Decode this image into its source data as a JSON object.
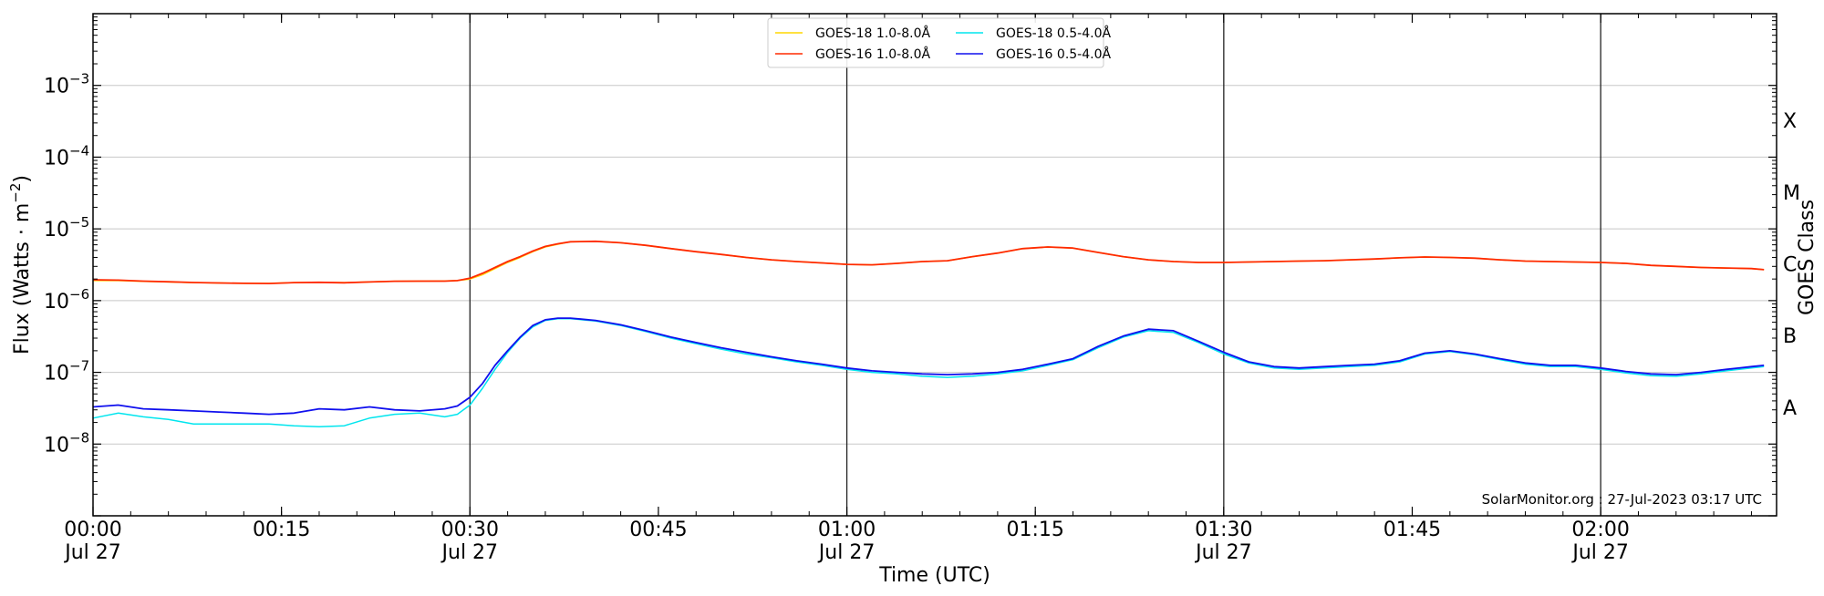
{
  "chart_data": {
    "type": "line",
    "title": "",
    "xlabel": "Time (UTC)",
    "ylabel": "Flux (Watts · m",
    "ylabel_sup": "−2",
    "ylabel_end": ")",
    "y2label": "GOES Class",
    "yscale": "log",
    "xlim": [
      0,
      134
    ],
    "ylim": [
      1e-09,
      0.01
    ],
    "x_unit": "minutes after 2023-07-27 00:00 UTC",
    "grid": "horizontal at decades",
    "legend_position": "top-center",
    "x_ticks": [
      {
        "value": 0,
        "line1": "00:00",
        "line2": "Jul 27"
      },
      {
        "value": 15,
        "line1": "00:15",
        "line2": ""
      },
      {
        "value": 30,
        "line1": "00:30",
        "line2": "Jul 27"
      },
      {
        "value": 45,
        "line1": "00:45",
        "line2": ""
      },
      {
        "value": 60,
        "line1": "01:00",
        "line2": "Jul 27"
      },
      {
        "value": 75,
        "line1": "01:15",
        "line2": ""
      },
      {
        "value": 90,
        "line1": "01:30",
        "line2": "Jul 27"
      },
      {
        "value": 105,
        "line1": "01:45",
        "line2": ""
      },
      {
        "value": 120,
        "line1": "02:00",
        "line2": "Jul 27"
      }
    ],
    "vertical_lines": [
      30,
      60,
      90,
      120
    ],
    "y_ticks": [
      {
        "exp": -3,
        "label": "10",
        "sup": "−3"
      },
      {
        "exp": -4,
        "label": "10",
        "sup": "−4"
      },
      {
        "exp": -5,
        "label": "10",
        "sup": "−5"
      },
      {
        "exp": -6,
        "label": "10",
        "sup": "−6"
      },
      {
        "exp": -7,
        "label": "10",
        "sup": "−7"
      },
      {
        "exp": -8,
        "label": "10",
        "sup": "−8"
      }
    ],
    "goes_classes": [
      {
        "label": "X",
        "exp": -3.5
      },
      {
        "label": "M",
        "exp": -4.5
      },
      {
        "label": "C",
        "exp": -5.5
      },
      {
        "label": "B",
        "exp": -6.5
      },
      {
        "label": "A",
        "exp": -7.5
      }
    ],
    "x": [
      0,
      2,
      4,
      6,
      8,
      10,
      12,
      14,
      16,
      18,
      20,
      22,
      24,
      26,
      28,
      29,
      30,
      31,
      32,
      33,
      34,
      35,
      36,
      37,
      38,
      40,
      42,
      44,
      46,
      48,
      50,
      52,
      54,
      56,
      58,
      60,
      62,
      64,
      66,
      68,
      70,
      72,
      74,
      76,
      78,
      80,
      82,
      84,
      86,
      88,
      90,
      92,
      94,
      96,
      98,
      100,
      102,
      104,
      106,
      108,
      110,
      112,
      114,
      116,
      118,
      120,
      122,
      124,
      126,
      128,
      130,
      132,
      133
    ],
    "series": [
      {
        "name": "GOES-18 1.0-8.0Å",
        "color": "#ffd700",
        "values": [
          1.9e-06,
          1.9e-06,
          1.85e-06,
          1.82e-06,
          1.78e-06,
          1.76e-06,
          1.74e-06,
          1.74e-06,
          1.78e-06,
          1.8e-06,
          1.78e-06,
          1.82e-06,
          1.86e-06,
          1.87e-06,
          1.88e-06,
          1.9e-06,
          2e-06,
          2.3e-06,
          2.8e-06,
          3.4e-06,
          4e-06,
          4.8e-06,
          5.6e-06,
          6.1e-06,
          6.6e-06,
          6.7e-06,
          6.4e-06,
          5.9e-06,
          5.3e-06,
          4.8e-06,
          4.4e-06,
          4e-06,
          3.7e-06,
          3.5e-06,
          3.35e-06,
          3.2e-06,
          3.15e-06,
          3.3e-06,
          3.5e-06,
          3.6e-06,
          4.1e-06,
          4.6e-06,
          5.3e-06,
          5.6e-06,
          5.4e-06,
          4.7e-06,
          4.1e-06,
          3.7e-06,
          3.5e-06,
          3.4e-06,
          3.4e-06,
          3.45e-06,
          3.5e-06,
          3.55e-06,
          3.6e-06,
          3.7e-06,
          3.8e-06,
          3.95e-06,
          4.05e-06,
          4e-06,
          3.9e-06,
          3.7e-06,
          3.55e-06,
          3.5e-06,
          3.45e-06,
          3.4e-06,
          3.3e-06,
          3.1e-06,
          3e-06,
          2.9e-06,
          2.85e-06,
          2.8e-06,
          2.7e-06
        ]
      },
      {
        "name": "GOES-18 0.5-4.0Å",
        "color": "#00e5ee",
        "values": [
          2.3e-08,
          2.7e-08,
          2.4e-08,
          2.2e-08,
          1.9e-08,
          1.9e-08,
          1.9e-08,
          1.9e-08,
          1.8e-08,
          1.75e-08,
          1.8e-08,
          2.3e-08,
          2.6e-08,
          2.7e-08,
          2.4e-08,
          2.6e-08,
          3.5e-08,
          6e-08,
          1.1e-07,
          1.9e-07,
          3e-07,
          4.3e-07,
          5.3e-07,
          5.6e-07,
          5.6e-07,
          5.2e-07,
          4.5e-07,
          3.7e-07,
          3e-07,
          2.5e-07,
          2.1e-07,
          1.8e-07,
          1.6e-07,
          1.4e-07,
          1.25e-07,
          1.1e-07,
          1e-07,
          9.5e-08,
          8.8e-08,
          8.5e-08,
          8.8e-08,
          9.5e-08,
          1.05e-07,
          1.25e-07,
          1.5e-07,
          2.2e-07,
          3.1e-07,
          3.8e-07,
          3.6e-07,
          2.6e-07,
          1.8e-07,
          1.35e-07,
          1.15e-07,
          1.1e-07,
          1.15e-07,
          1.2e-07,
          1.25e-07,
          1.4e-07,
          1.8e-07,
          1.95e-07,
          1.75e-07,
          1.5e-07,
          1.3e-07,
          1.2e-07,
          1.2e-07,
          1.1e-07,
          9.8e-08,
          9e-08,
          8.8e-08,
          9.5e-08,
          1.05e-07,
          1.15e-07,
          1.2e-07
        ]
      },
      {
        "name": "GOES-16 1.0-8.0Å",
        "color": "#ff2a00",
        "values": [
          1.95e-06,
          1.93e-06,
          1.87e-06,
          1.83e-06,
          1.79e-06,
          1.76e-06,
          1.74e-06,
          1.73e-06,
          1.78e-06,
          1.8e-06,
          1.77e-06,
          1.82e-06,
          1.86e-06,
          1.87e-06,
          1.87e-06,
          1.9e-06,
          2.05e-06,
          2.4e-06,
          2.9e-06,
          3.5e-06,
          4.1e-06,
          4.9e-06,
          5.7e-06,
          6.2e-06,
          6.6e-06,
          6.7e-06,
          6.4e-06,
          5.9e-06,
          5.3e-06,
          4.8e-06,
          4.4e-06,
          4e-06,
          3.7e-06,
          3.5e-06,
          3.35e-06,
          3.2e-06,
          3.15e-06,
          3.3e-06,
          3.5e-06,
          3.6e-06,
          4.1e-06,
          4.6e-06,
          5.3e-06,
          5.6e-06,
          5.4e-06,
          4.7e-06,
          4.1e-06,
          3.7e-06,
          3.5e-06,
          3.4e-06,
          3.4e-06,
          3.45e-06,
          3.5e-06,
          3.55e-06,
          3.6e-06,
          3.7e-06,
          3.8e-06,
          3.95e-06,
          4.05e-06,
          4e-06,
          3.9e-06,
          3.7e-06,
          3.55e-06,
          3.5e-06,
          3.45e-06,
          3.4e-06,
          3.3e-06,
          3.1e-06,
          3e-06,
          2.9e-06,
          2.85e-06,
          2.8e-06,
          2.7e-06
        ]
      },
      {
        "name": "GOES-16 0.5-4.0Å",
        "color": "#1010ee",
        "values": [
          3.3e-08,
          3.5e-08,
          3.1e-08,
          3e-08,
          2.9e-08,
          2.8e-08,
          2.7e-08,
          2.6e-08,
          2.7e-08,
          3.1e-08,
          3e-08,
          3.3e-08,
          3e-08,
          2.9e-08,
          3.1e-08,
          3.4e-08,
          4.5e-08,
          7e-08,
          1.25e-07,
          2e-07,
          3.1e-07,
          4.5e-07,
          5.4e-07,
          5.7e-07,
          5.7e-07,
          5.3e-07,
          4.6e-07,
          3.8e-07,
          3.1e-07,
          2.6e-07,
          2.2e-07,
          1.9e-07,
          1.65e-07,
          1.45e-07,
          1.3e-07,
          1.15e-07,
          1.05e-07,
          1e-07,
          9.5e-08,
          9.3e-08,
          9.5e-08,
          1e-07,
          1.1e-07,
          1.3e-07,
          1.55e-07,
          2.3e-07,
          3.2e-07,
          4e-07,
          3.8e-07,
          2.7e-07,
          1.9e-07,
          1.4e-07,
          1.2e-07,
          1.15e-07,
          1.2e-07,
          1.25e-07,
          1.3e-07,
          1.45e-07,
          1.85e-07,
          2e-07,
          1.8e-07,
          1.55e-07,
          1.35e-07,
          1.25e-07,
          1.25e-07,
          1.15e-07,
          1.03e-07,
          9.5e-08,
          9.3e-08,
          1e-07,
          1.1e-07,
          1.2e-07,
          1.25e-07
        ]
      }
    ],
    "credit": "SolarMonitor.org : 27-Jul-2023 03:17 UTC"
  }
}
